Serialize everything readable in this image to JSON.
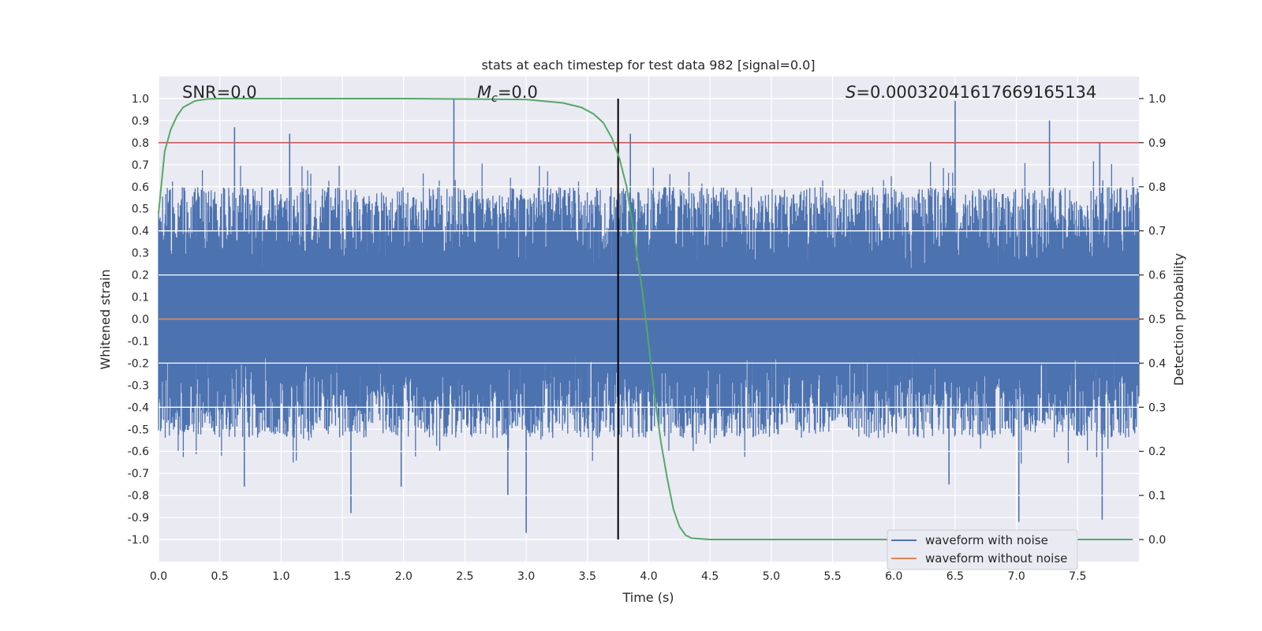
{
  "chart_data": {
    "type": "line",
    "title": "stats at each timestep for test data 982 [signal=0.0]",
    "xlabel": "Time (s)",
    "ylabel_left": "Whitened strain",
    "ylabel_right": "Detection probability",
    "xlim": [
      0.0,
      8.0
    ],
    "ylim_left": [
      -1.1,
      1.1
    ],
    "ylim_right": [
      -0.05,
      1.05
    ],
    "xticks": [
      "0.0",
      "0.5",
      "1.0",
      "1.5",
      "2.0",
      "2.5",
      "3.0",
      "3.5",
      "4.0",
      "4.5",
      "5.0",
      "5.5",
      "6.0",
      "6.5",
      "7.0",
      "7.5"
    ],
    "yticks_left": [
      "1.0",
      "0.9",
      "0.8",
      "0.7",
      "0.6",
      "0.5",
      "0.4",
      "0.3",
      "0.2",
      "0.1",
      "0.0",
      "-0.1",
      "-0.2",
      "-0.3",
      "-0.4",
      "-0.5",
      "-0.6",
      "-0.7",
      "-0.8",
      "-0.9",
      "-1.0"
    ],
    "yticks_right": [
      "1.0",
      "0.9",
      "0.8",
      "0.7",
      "0.6",
      "0.5",
      "0.4",
      "0.3",
      "0.2",
      "0.1",
      "0.0"
    ],
    "grid": true,
    "annotations": {
      "snr": "SNR=0.0",
      "mc_symbol": "M",
      "mc_sub": "c",
      "mc_value": "=0.0",
      "s_symbol": "S",
      "s_value": "=0.00032041617669165134"
    },
    "threshold": 0.9,
    "vline_time": 3.75,
    "noise_envelope": {
      "upper_typical": 0.5,
      "lower_typical": -0.45,
      "peaks": [
        {
          "t": 0.62,
          "v": 0.87
        },
        {
          "t": 1.07,
          "v": 0.84
        },
        {
          "t": 2.41,
          "v": 1.0
        },
        {
          "t": 3.85,
          "v": 0.84
        },
        {
          "t": 6.5,
          "v": 0.99
        },
        {
          "t": 7.27,
          "v": 0.9
        },
        {
          "t": 7.68,
          "v": 0.8
        },
        {
          "t": 3.0,
          "v": -0.97
        },
        {
          "t": 1.57,
          "v": -0.88
        },
        {
          "t": 7.02,
          "v": -0.92
        },
        {
          "t": 7.7,
          "v": -0.91
        },
        {
          "t": 0.7,
          "v": -0.76
        },
        {
          "t": 1.98,
          "v": -0.76
        },
        {
          "t": 2.85,
          "v": -0.8
        },
        {
          "t": 6.45,
          "v": -0.75
        }
      ]
    },
    "series": [
      {
        "name": "waveform with noise",
        "color": "#4c72b0",
        "kind": "noise"
      },
      {
        "name": "waveform without noise",
        "color": "#dd8452",
        "kind": "flat",
        "value": 0.0
      },
      {
        "name": "Detection probability",
        "color": "#55a868",
        "kind": "prob",
        "x": [
          0.0,
          0.05,
          0.1,
          0.15,
          0.2,
          0.3,
          0.4,
          0.5,
          1.0,
          2.0,
          3.0,
          3.3,
          3.45,
          3.55,
          3.63,
          3.7,
          3.76,
          3.82,
          3.88,
          3.95,
          4.0,
          4.05,
          4.1,
          4.15,
          4.2,
          4.25,
          4.3,
          4.35,
          4.5,
          5.0,
          6.0,
          7.0,
          7.95
        ],
        "y": [
          0.74,
          0.88,
          0.93,
          0.96,
          0.98,
          0.995,
          0.999,
          1.0,
          1.0,
          1.0,
          0.998,
          0.99,
          0.98,
          0.965,
          0.945,
          0.91,
          0.865,
          0.8,
          0.69,
          0.56,
          0.44,
          0.32,
          0.22,
          0.14,
          0.07,
          0.03,
          0.01,
          0.003,
          0.0,
          0.0,
          0.0,
          0.0,
          0.0
        ]
      },
      {
        "name": "threshold",
        "color": "#c44e52",
        "kind": "hline",
        "value": 0.9
      },
      {
        "name": "timestep",
        "color": "#000000",
        "kind": "vline"
      }
    ],
    "legend": {
      "location": "lower-right",
      "entries": [
        {
          "label": "waveform with noise",
          "color": "#4c72b0"
        },
        {
          "label": "waveform without noise",
          "color": "#dd8452"
        }
      ]
    }
  }
}
